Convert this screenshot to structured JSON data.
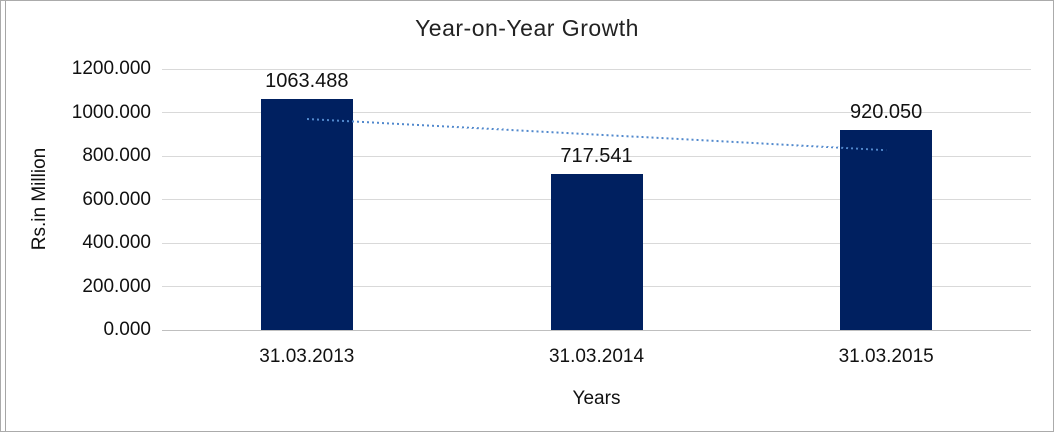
{
  "chart_data": {
    "type": "bar",
    "title": "Year-on-Year Growth",
    "ylabel": "Rs.in Million",
    "xlabel": "Years",
    "categories": [
      "31.03.2013",
      "31.03.2014",
      "31.03.2015"
    ],
    "values": [
      1063.488,
      717.541,
      920.05
    ],
    "data_labels": [
      "1063.488",
      "717.541",
      "920.050"
    ],
    "yticks": [
      0,
      200,
      400,
      600,
      800,
      1000,
      1200
    ],
    "ytick_labels": [
      "0.000",
      "200.000",
      "400.000",
      "600.000",
      "800.000",
      "1000.000",
      "1200.000"
    ],
    "ylim": [
      0,
      1200
    ],
    "grid": true,
    "legend": false,
    "trendline": {
      "type": "linear",
      "style": "dotted"
    },
    "colors": {
      "bar": "#002060",
      "gridline": "#d9d9d9",
      "axis_line": "#bfbfbf",
      "trend": "#5289cd",
      "text": "#111111",
      "frame_border": "#ababab"
    }
  }
}
